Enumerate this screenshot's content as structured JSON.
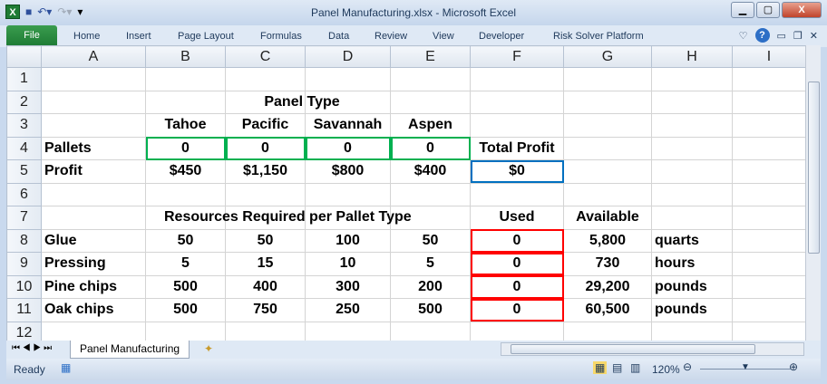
{
  "window": {
    "title": "Panel Manufacturing.xlsx - Microsoft Excel"
  },
  "ribbon": {
    "file": "File",
    "tabs": [
      "Home",
      "Insert",
      "Page Layout",
      "Formulas",
      "Data",
      "Review",
      "View",
      "Developer",
      "Risk Solver Platform"
    ]
  },
  "columns": [
    "A",
    "B",
    "C",
    "D",
    "E",
    "F",
    "G",
    "H",
    "I"
  ],
  "rows": [
    [
      "",
      "",
      "",
      "",
      "",
      "",
      "",
      "",
      ""
    ],
    [
      "",
      "",
      "Panel Type",
      "",
      "",
      "",
      "",
      "",
      ""
    ],
    [
      "",
      "Tahoe",
      "Pacific",
      "Savannah",
      "Aspen",
      "",
      "",
      "",
      ""
    ],
    [
      "Pallets",
      "0",
      "0",
      "0",
      "0",
      "Total Profit",
      "",
      "",
      ""
    ],
    [
      "Profit",
      "$450",
      "$1,150",
      "$800",
      "$400",
      "$0",
      "",
      "",
      ""
    ],
    [
      "",
      "",
      "",
      "",
      "",
      "",
      "",
      "",
      ""
    ],
    [
      "",
      "Resources Required per Pallet Type",
      "",
      "",
      "",
      "Used",
      "Available",
      "",
      ""
    ],
    [
      "Glue",
      "50",
      "50",
      "100",
      "50",
      "0",
      "5,800",
      "quarts",
      ""
    ],
    [
      "Pressing",
      "5",
      "15",
      "10",
      "5",
      "0",
      "730",
      "hours",
      ""
    ],
    [
      "Pine chips",
      "500",
      "400",
      "300",
      "200",
      "0",
      "29,200",
      "pounds",
      ""
    ],
    [
      "Oak chips",
      "500",
      "750",
      "250",
      "500",
      "0",
      "60,500",
      "pounds",
      ""
    ],
    [
      "",
      "",
      "",
      "",
      "",
      "",
      "",
      "",
      ""
    ]
  ],
  "sheet_tab": "Panel Manufacturing",
  "status": {
    "ready": "Ready",
    "zoom": "120%"
  },
  "colors": {
    "decision_cells": "#00b050",
    "objective_cell": "#0070c0",
    "constraint_cells": "#ff0000"
  }
}
